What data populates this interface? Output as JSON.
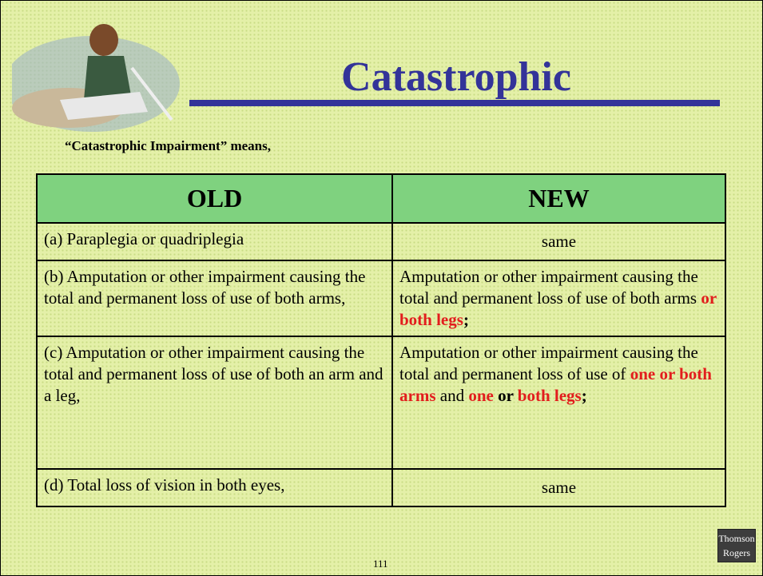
{
  "header": {
    "title": "Catastrophic",
    "subtitle": "“Catastrophic Impairment” means,"
  },
  "table": {
    "headers": [
      "OLD",
      "NEW"
    ],
    "rows": [
      [
        [
          {
            "text": "(a)  Paraplegia or quadriplegia",
            "style": "plain"
          }
        ],
        [
          {
            "text": "same",
            "style": "plain"
          }
        ]
      ],
      [
        [
          {
            "text": "(b)  Amputation or other impairment causing the total and permanent loss of use of both arms,",
            "style": "plain"
          }
        ],
        [
          {
            "text": "Amputation or other impairment causing the total and permanent loss of use of both arms ",
            "style": "plain"
          },
          {
            "text": "or both legs",
            "style": "red"
          },
          {
            "text": ";",
            "style": "bold"
          }
        ]
      ],
      [
        [
          {
            "text": "(c)  Amputation or other impairment causing the total and permanent loss of use of both an arm and a leg,",
            "style": "plain"
          }
        ],
        [
          {
            "text": "Amputation or other impairment causing the total and permanent loss of use of ",
            "style": "plain"
          },
          {
            "text": "one or both arms",
            "style": "red"
          },
          {
            "text": " and ",
            "style": "plain"
          },
          {
            "text": "one",
            "style": "red"
          },
          {
            "text": " or ",
            "style": "bold"
          },
          {
            "text": "both legs",
            "style": "red"
          },
          {
            "text": ";",
            "style": "bold"
          }
        ]
      ],
      [
        [
          {
            "text": "(d)  Total loss of vision in both eyes,",
            "style": "plain"
          }
        ],
        [
          {
            "text": "same",
            "style": "plain"
          }
        ]
      ]
    ]
  },
  "footer": {
    "page_number": "111",
    "logo": [
      "Thomson",
      "Rogers"
    ]
  }
}
